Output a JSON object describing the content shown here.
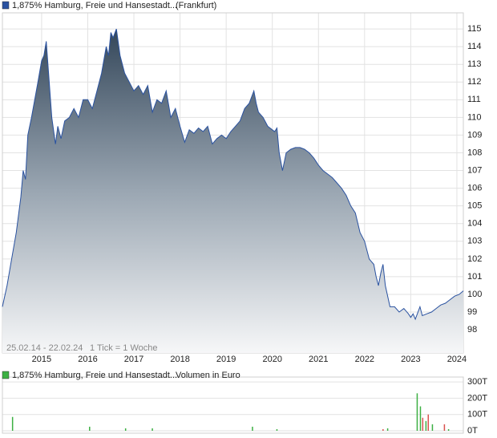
{
  "chart_data": [
    {
      "type": "area",
      "series": [
        {
          "name": "1,875% Hamburg, Freie und Hansestadt...",
          "color": "#2a52a0",
          "values": [
            99.3,
            100.5,
            102,
            103.5,
            105.5,
            107,
            106.5,
            109,
            110,
            111,
            112,
            113.2,
            113.5,
            114.3,
            112.5,
            110,
            108.5,
            109.5,
            108.8,
            109.8,
            110,
            110.5,
            110,
            111,
            111,
            110.5,
            111.5,
            112.5,
            114,
            113.5,
            114.8,
            114.5,
            115,
            113.5,
            112.5,
            112,
            111.5,
            111.8,
            111.3,
            111.8,
            110.3,
            111,
            110.8,
            111.5,
            110,
            110.5,
            109.5,
            108.6,
            109.3,
            109.1,
            109.4,
            109.2,
            109.5,
            108.5,
            108.8,
            109,
            108.8,
            109.2,
            109.5,
            109.8,
            110.5,
            110.8,
            111.5,
            110.8,
            110.3,
            110,
            109.5,
            109.3,
            109.2,
            109.4,
            108,
            107,
            108,
            108.2,
            108.3,
            108.3,
            108.2,
            108,
            107.7,
            107.3,
            107,
            106.8,
            106.6,
            106.3,
            106,
            105.6,
            105,
            104.6,
            103.5,
            103,
            102,
            101.7,
            101,
            100.5,
            101.2,
            101.7,
            100.5,
            99.3,
            99.3,
            99,
            99.2,
            98.9,
            98.7,
            98.9,
            98.6,
            99.3,
            98.8,
            98.9,
            99,
            99.2,
            99.4,
            99.5,
            99.7,
            99.9,
            100,
            100.2
          ]
        }
      ],
      "x": [
        2014.15,
        2014.25,
        2014.35,
        2014.45,
        2014.55,
        2014.6,
        2014.65,
        2014.7,
        2014.78,
        2014.85,
        2014.92,
        2015.0,
        2015.05,
        2015.1,
        2015.15,
        2015.22,
        2015.3,
        2015.35,
        2015.42,
        2015.5,
        2015.6,
        2015.7,
        2015.8,
        2015.9,
        2016.0,
        2016.1,
        2016.2,
        2016.3,
        2016.4,
        2016.45,
        2016.5,
        2016.55,
        2016.62,
        2016.7,
        2016.8,
        2016.9,
        2017.0,
        2017.1,
        2017.2,
        2017.3,
        2017.4,
        2017.5,
        2017.6,
        2017.7,
        2017.8,
        2017.9,
        2018.0,
        2018.1,
        2018.2,
        2018.3,
        2018.4,
        2018.5,
        2018.6,
        2018.7,
        2018.8,
        2018.9,
        2019.0,
        2019.1,
        2019.2,
        2019.3,
        2019.4,
        2019.5,
        2019.6,
        2019.65,
        2019.7,
        2019.8,
        2019.9,
        2020.0,
        2020.05,
        2020.1,
        2020.15,
        2020.22,
        2020.3,
        2020.4,
        2020.5,
        2020.6,
        2020.7,
        2020.8,
        2020.9,
        2021.0,
        2021.1,
        2021.2,
        2021.3,
        2021.4,
        2021.5,
        2021.6,
        2021.7,
        2021.8,
        2021.9,
        2022.0,
        2022.1,
        2022.2,
        2022.25,
        2022.3,
        2022.35,
        2022.4,
        2022.45,
        2022.55,
        2022.65,
        2022.75,
        2022.85,
        2022.95,
        2023.0,
        2023.05,
        2023.1,
        2023.2,
        2023.25,
        2023.35,
        2023.45,
        2023.55,
        2023.65,
        2023.75,
        2023.85,
        2023.95,
        2024.05,
        2024.14
      ],
      "exchange": "(Frankfurt)",
      "range_label": "25.02.14 - 22.02.24",
      "tick_note": "1 Tick = 1 Woche",
      "xlim": [
        2014.15,
        2024.14
      ],
      "xticks": [
        2015,
        2016,
        2017,
        2018,
        2019,
        2020,
        2021,
        2022,
        2023,
        2024
      ],
      "ylim": [
        96.69,
        115.91
      ],
      "yticks": [
        98,
        99,
        100,
        101,
        102,
        103,
        104,
        105,
        106,
        107,
        108,
        109,
        110,
        111,
        112,
        113,
        114,
        115
      ],
      "grid": true
    },
    {
      "type": "bar",
      "series": [
        {
          "name": "1,875% Hamburg, Freie und Hansestadt...",
          "color": "#3cb043",
          "values": [
            85,
            25,
            15,
            15,
            25,
            10,
            10,
            15,
            230,
            150,
            80,
            60,
            100,
            40,
            40,
            10
          ],
          "colors": [
            "#3cb043",
            "#3cb043",
            "#3cb043",
            "#3cb043",
            "#3cb043",
            "#3cb043",
            "#d9534f",
            "#3cb043",
            "#3cb043",
            "#3cb043",
            "#d9534f",
            "#3cb043",
            "#d9534f",
            "#3cb043",
            "#d9534f",
            "#3cb043"
          ]
        }
      ],
      "x": [
        2014.37,
        2016.04,
        2016.82,
        2017.4,
        2019.57,
        2020.1,
        2022.4,
        2022.5,
        2023.14,
        2023.21,
        2023.26,
        2023.33,
        2023.38,
        2023.47,
        2023.73,
        2023.82
      ],
      "subtitle": "Volumen in Euro",
      "xlim": [
        2014.15,
        2024.14
      ],
      "ylim": [
        0,
        330
      ],
      "yticks": [
        {
          "value": 0,
          "label": "0T"
        },
        {
          "value": 100,
          "label": "100T"
        },
        {
          "value": 200,
          "label": "200T"
        },
        {
          "value": 300,
          "label": "300T"
        }
      ],
      "grid": true
    }
  ]
}
